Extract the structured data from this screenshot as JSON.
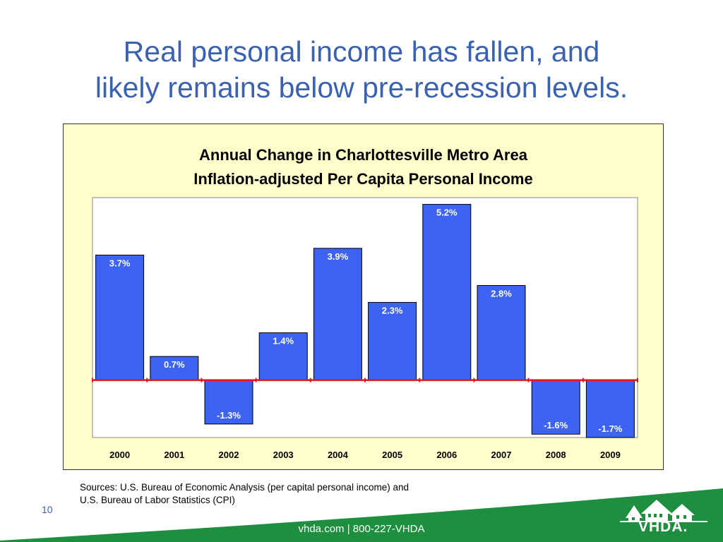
{
  "slide": {
    "title_line1": "Real personal income has fallen, and",
    "title_line2": "likely remains below pre-recession levels.",
    "page_number": "10"
  },
  "sources": {
    "line1": "Sources:  U.S. Bureau of Economic Analysis (per capital personal income) and",
    "line2": "U.S. Bureau of Labor Statistics (CPI)"
  },
  "footer": {
    "text": "vhda.com | 800-227-VHDA",
    "logo_text": "VHDA."
  },
  "colors": {
    "title": "#3a62b0",
    "panel_background": "#ffffcc",
    "bar": "#3d63f2",
    "zero_line": "#e8121a",
    "footer_green": "#1e8f3e"
  },
  "chart_data": {
    "type": "bar",
    "title_line1": "Annual Change in Charlottesville Metro Area",
    "title_line2": "Inflation-adjusted Per Capita Personal Income",
    "categories": [
      "2000",
      "2001",
      "2002",
      "2003",
      "2004",
      "2005",
      "2006",
      "2007",
      "2008",
      "2009"
    ],
    "values": [
      3.7,
      0.7,
      -1.3,
      1.4,
      3.9,
      2.3,
      5.2,
      2.8,
      -1.6,
      -1.7
    ],
    "data_labels": [
      "3.7%",
      "0.7%",
      "-1.3%",
      "1.4%",
      "3.9%",
      "2.3%",
      "5.2%",
      "2.8%",
      "-1.6%",
      "-1.7%"
    ],
    "xlabel": "",
    "ylabel": "",
    "ylim": [
      -1.7,
      5.4
    ],
    "grid": false,
    "legend": "none"
  }
}
